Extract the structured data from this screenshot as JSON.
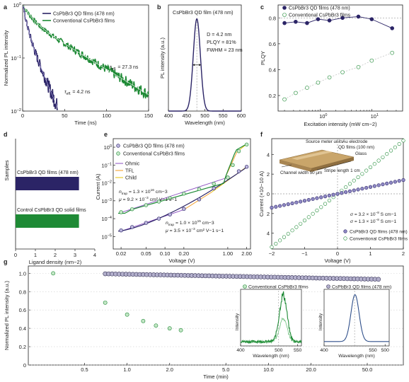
{
  "colors": {
    "qd": "#2b2466",
    "qd_light": "#7e76b8",
    "conv": "#1e8a35",
    "conv_light": "#6fc07d",
    "purple": "#8b4fc0",
    "orange": "#f39a1e",
    "yellow": "#e6c200",
    "guide": "#9a9a9a"
  },
  "chart_data": [
    {
      "panel": "a",
      "type": "line",
      "xlabel": "Time (ns)",
      "ylabel": "Normalized PL intensity",
      "xlim": [
        0,
        150
      ],
      "ylim": [
        0.01,
        1
      ],
      "yscale": "log",
      "xticks": [
        "0",
        "50",
        "100",
        "150"
      ],
      "yticks": [
        {
          "base": "10",
          "exp": "0"
        },
        {
          "base": "10",
          "exp": "−1"
        },
        {
          "base": "10",
          "exp": "−2"
        }
      ],
      "legend": [
        "CsPbBr3 QD films (478 nm)",
        "Conventional CsPbBr3 films"
      ],
      "series": [
        {
          "name": "CsPbBr3 QD films (478 nm)",
          "lifetime_ns": 4.2,
          "x_end": 54
        },
        {
          "name": "Conventional CsPbBr3 films",
          "lifetime_ns": 27.3,
          "x_end": 150
        }
      ],
      "annotations": [
        {
          "lead": "τ",
          "sub": "eff.",
          "text": " = 27.3 ns"
        },
        {
          "lead": "τ",
          "sub": "eff.",
          "text": " = 4.2 ns"
        }
      ]
    },
    {
      "panel": "b",
      "type": "line",
      "title": "CsPbBr3 QD film (478 nm)",
      "xlabel": "Wavelength (nm)",
      "ylabel": "PL intensity (a.u.)",
      "xlim": [
        400,
        600
      ],
      "xticks": [
        "400",
        "450",
        "500",
        "550",
        "600"
      ],
      "peak_nm": 478,
      "fwhm_nm": 23,
      "annotations": [
        "D = 4.2 nm",
        "PLQY = 81%",
        "FWHM = 23 nm"
      ]
    },
    {
      "panel": "c",
      "type": "scatter",
      "xlabel": "Excitation intensity (mW cm−2)",
      "ylabel": "PLQY",
      "xscale": "log",
      "xlim": [
        0.15,
        40
      ],
      "ylim": [
        0.08,
        0.9
      ],
      "xticks": [
        {
          "base": "10",
          "exp": "0"
        },
        {
          "base": "10",
          "exp": "1"
        }
      ],
      "yticks": [
        "0.2",
        "0.4",
        "0.6",
        "0.8"
      ],
      "legend": [
        "CsPbBr3 QD films (478 nm)",
        "Conventional CsPbBr3 films"
      ],
      "series": [
        {
          "name": "CsPbBr3 QD films (478 nm)",
          "x": [
            0.2,
            0.33,
            0.55,
            0.9,
            1.5,
            2.7,
            5.5,
            10,
            25
          ],
          "y": [
            0.76,
            0.77,
            0.76,
            0.79,
            0.78,
            0.8,
            0.81,
            0.79,
            0.72
          ]
        },
        {
          "name": "Conventional CsPbBr3 films",
          "x": [
            0.2,
            0.33,
            0.55,
            0.9,
            1.5,
            2.7,
            5.5,
            10,
            25
          ],
          "y": [
            0.17,
            0.22,
            0.26,
            0.3,
            0.34,
            0.38,
            0.42,
            0.47,
            0.53
          ]
        }
      ]
    },
    {
      "panel": "d",
      "type": "bar",
      "xlabel": "Ligand density (nm−2)",
      "ylabel": "Samples",
      "xlim": [
        0,
        4
      ],
      "xticks": [
        "0",
        "1",
        "2",
        "3",
        "4"
      ],
      "categories": [
        "CsPbBr3 QD films (478 nm)",
        "Control CsPbBr3 QD solid films"
      ],
      "values": [
        3.2,
        3.2
      ]
    },
    {
      "panel": "e",
      "type": "scatter",
      "xlabel": "Voltage (V)",
      "ylabel": "Current (A)",
      "xscale": "log",
      "yscale": "log",
      "xlim": [
        0.015,
        2.3
      ],
      "ylim": [
        2e-06,
        3
      ],
      "xticks": [
        "0.02",
        "0.05",
        "0.10",
        "0.20",
        "1.00",
        "2.00"
      ],
      "yticks": [
        {
          "base": "10",
          "exp": "0"
        },
        {
          "base": "10",
          "exp": "−1"
        },
        {
          "base": "10",
          "exp": "−2"
        },
        {
          "base": "10",
          "exp": "−3"
        },
        {
          "base": "10",
          "exp": "−4"
        },
        {
          "base": "10",
          "exp": "−5"
        }
      ],
      "legend": [
        "CsPbBr3 QD films (478 nm)",
        "Conventional CsPbBr3 films",
        "Ohmic",
        "TFL",
        "Child"
      ],
      "series": [
        {
          "name": "CsPbBr3 QD films (478 nm)",
          "x": [
            0.02,
            0.03,
            0.05,
            0.08,
            0.12,
            0.2,
            0.35,
            0.6,
            1.0,
            1.5,
            2.0
          ],
          "y": [
            2.2e-05,
            3.4e-05,
            5.8e-05,
            0.0001,
            0.00017,
            0.00035,
            0.0012,
            0.005,
            0.02,
            0.045,
            0.08
          ]
        },
        {
          "name": "Conventional CsPbBr3 films",
          "x": [
            0.02,
            0.03,
            0.05,
            0.08,
            0.12,
            0.2,
            0.35,
            0.6,
            1.0,
            1.2,
            1.5,
            2.0
          ],
          "y": [
            0.00023,
            0.00034,
            0.00057,
            0.0009,
            0.0014,
            0.0025,
            0.0045,
            0.009,
            0.02,
            0.1,
            0.6,
            1.4
          ]
        }
      ],
      "annotations": [
        {
          "lead": "n",
          "sub": "trap",
          "text": " = 1.3 × 10",
          "sup": "16",
          "tail": " cm−3"
        },
        {
          "lead": "μ",
          "text": " = 9.2 × 10",
          "sup": "−3",
          "tail": " cm² V−1 s−1"
        },
        {
          "lead": "n",
          "sub": "trap",
          "text": " = 1.0 × 10",
          "sup": "15",
          "tail": " cm−3"
        },
        {
          "lead": "μ",
          "text": " = 3.5 × 10",
          "sup": "−3",
          "tail": " cm² V−1 s−1"
        }
      ]
    },
    {
      "panel": "f",
      "type": "scatter",
      "xlabel": "Voltage (V)",
      "ylabel": "Current (×10−10 A)",
      "xlim": [
        -2,
        2
      ],
      "ylim": [
        -5.6,
        5.6
      ],
      "xticks": [
        "−2",
        "−1",
        "0",
        "1",
        "2"
      ],
      "yticks": [
        "4",
        "2",
        "0",
        "2",
        "4"
      ],
      "legend": [
        "CsPbBr3 QD films (478 nm)",
        "Conventional CsPbBr3 films"
      ],
      "series": [
        {
          "name": "CsPbBr3 QD films (478 nm)",
          "x_range": [
            -2,
            2
          ],
          "slope_per_V": 0.7
        },
        {
          "name": "Conventional CsPbBr3 films",
          "x_range": [
            -2,
            2
          ],
          "slope_per_V": 2.7
        }
      ],
      "annotations": [
        {
          "lead": "σ",
          "text": " = 3.2 × 10",
          "sup": "−8",
          "tail": " S cm−1"
        },
        {
          "lead": "σ",
          "text": " = 1.3 × 10",
          "sup": "−8",
          "tail": " S cm−1"
        }
      ],
      "inset_labels": [
        "Source meter units",
        "Au electrode",
        "QD films (100 nm)",
        "Glass",
        "Stripe length 1 cm",
        "Channel width 50 μm"
      ]
    },
    {
      "panel": "g",
      "type": "scatter",
      "xlabel": "Time (min)",
      "ylabel": "Normalized PL intensity (a.u.)",
      "xscale": "log",
      "xlim": [
        0.2,
        90
      ],
      "ylim": [
        0.0,
        1.08
      ],
      "xticks": [
        "0.5",
        "1.0",
        "2.0",
        "5.0",
        "10.0",
        "20.0",
        "50.0"
      ],
      "yticks": [
        "0",
        "0.2",
        "0.4",
        "0.6",
        "0.8",
        "1.0"
      ],
      "series": [
        {
          "name": "CsPbBr3 QD films (478 nm)",
          "x_start": 0.7,
          "x_end": 60,
          "y_start": 0.995,
          "y_end": 0.935,
          "count": 80
        },
        {
          "name": "Conventional CsPbBr3 films",
          "x": [
            0.3,
            0.7,
            1.0,
            1.3,
            1.6,
            2.0,
            2.4
          ],
          "y": [
            1.0,
            0.68,
            0.55,
            0.48,
            0.43,
            0.4,
            0.38
          ]
        }
      ],
      "insets": [
        {
          "title": "Conventional CsPbBr3 films",
          "xlabel": "Wavelength (nm)",
          "ylabel": "Intensity",
          "xticks": [
            "400",
            "550"
          ],
          "mid_tick": "500"
        },
        {
          "title": "CsPbBr3 QD films (478 nm)",
          "xlabel": "Wavelength (nm)",
          "ylabel": "Intensity",
          "xticks": [
            "400",
            "500"
          ],
          "mid_tick": "550"
        }
      ]
    }
  ],
  "panel_letters": [
    "a",
    "b",
    "c",
    "d",
    "e",
    "f",
    "g"
  ]
}
